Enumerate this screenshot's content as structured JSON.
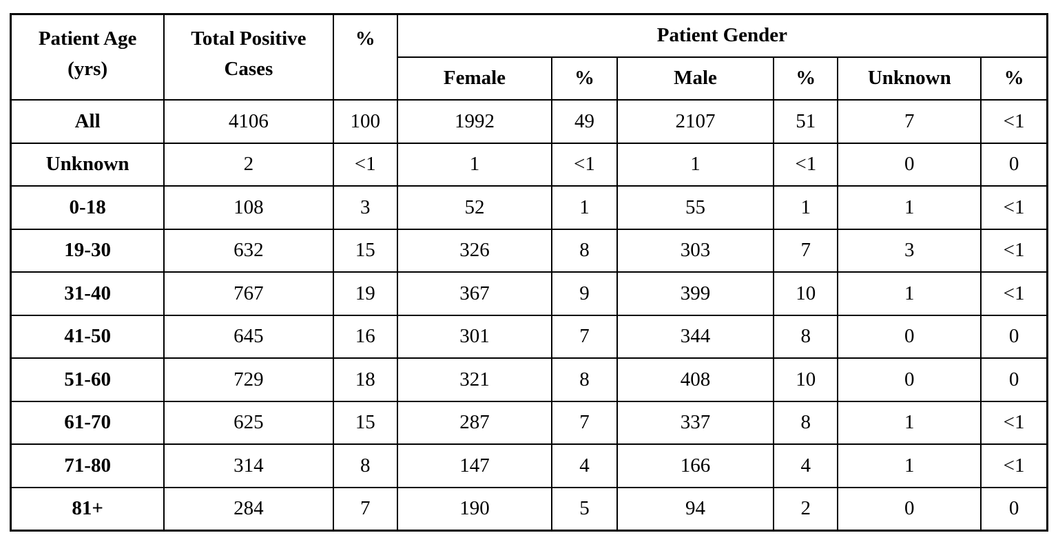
{
  "page": {
    "background_color": "#ffffff",
    "text_color": "#000000",
    "border_color": "#000000"
  },
  "table": {
    "header": {
      "age_line1": "Patient Age",
      "age_line2": "(yrs)",
      "total_line1": "Total Positive",
      "total_line2": "Cases",
      "total_pct": "%",
      "gender_group": "Patient Gender",
      "female": "Female",
      "female_pct": "%",
      "male": "Male",
      "male_pct": "%",
      "unknown": "Unknown",
      "unknown_pct": "%"
    },
    "rows": [
      {
        "age": "All",
        "values": [
          "4106",
          "100",
          "1992",
          "49",
          "2107",
          "51",
          "7",
          "<1"
        ]
      },
      {
        "age": "Unknown",
        "values": [
          "2",
          "<1",
          "1",
          "<1",
          "1",
          "<1",
          "0",
          "0"
        ]
      },
      {
        "age": "0-18",
        "values": [
          "108",
          "3",
          "52",
          "1",
          "55",
          "1",
          "1",
          "<1"
        ]
      },
      {
        "age": "19-30",
        "values": [
          "632",
          "15",
          "326",
          "8",
          "303",
          "7",
          "3",
          "<1"
        ]
      },
      {
        "age": "31-40",
        "values": [
          "767",
          "19",
          "367",
          "9",
          "399",
          "10",
          "1",
          "<1"
        ]
      },
      {
        "age": "41-50",
        "values": [
          "645",
          "16",
          "301",
          "7",
          "344",
          "8",
          "0",
          "0"
        ]
      },
      {
        "age": "51-60",
        "values": [
          "729",
          "18",
          "321",
          "8",
          "408",
          "10",
          "0",
          "0"
        ]
      },
      {
        "age": "61-70",
        "values": [
          "625",
          "15",
          "287",
          "7",
          "337",
          "8",
          "1",
          "<1"
        ]
      },
      {
        "age": "71-80",
        "values": [
          "314",
          "8",
          "147",
          "4",
          "166",
          "4",
          "1",
          "<1"
        ]
      },
      {
        "age": "81+",
        "values": [
          "284",
          "7",
          "190",
          "5",
          "94",
          "2",
          "0",
          "0"
        ]
      }
    ]
  }
}
